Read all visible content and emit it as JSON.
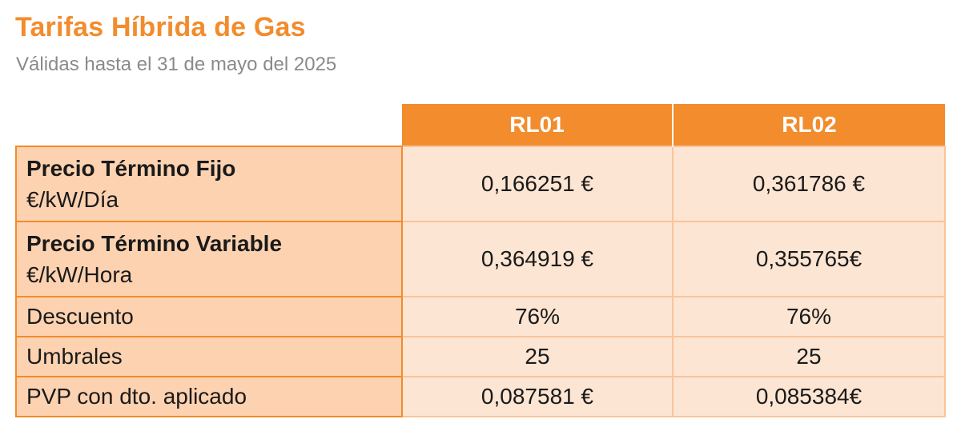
{
  "title": "Tarifas Híbrida de Gas",
  "subtitle": "Válidas hasta el 31 de mayo del 2025",
  "table": {
    "columns": [
      "RL01",
      "RL02"
    ],
    "rows": [
      {
        "label": "Precio Término Fijo",
        "unit": "€/kW/Día",
        "values": [
          "0,166251 €",
          "0,361786 €"
        ]
      },
      {
        "label": "Precio Término Variable",
        "unit": "€/kW/Hora",
        "values": [
          "0,364919 €",
          "0,355765€"
        ]
      },
      {
        "label": "Descuento",
        "values": [
          "76%",
          "76%"
        ]
      },
      {
        "label": "Umbrales",
        "values": [
          "25",
          "25"
        ]
      },
      {
        "label": "PVP con dto. aplicado",
        "values": [
          "0,087581 €",
          "0,085384€"
        ]
      }
    ]
  },
  "colors": {
    "accent": "#f28c2c",
    "label_bg": "#fdd2b0",
    "value_bg": "#fde5d3"
  }
}
